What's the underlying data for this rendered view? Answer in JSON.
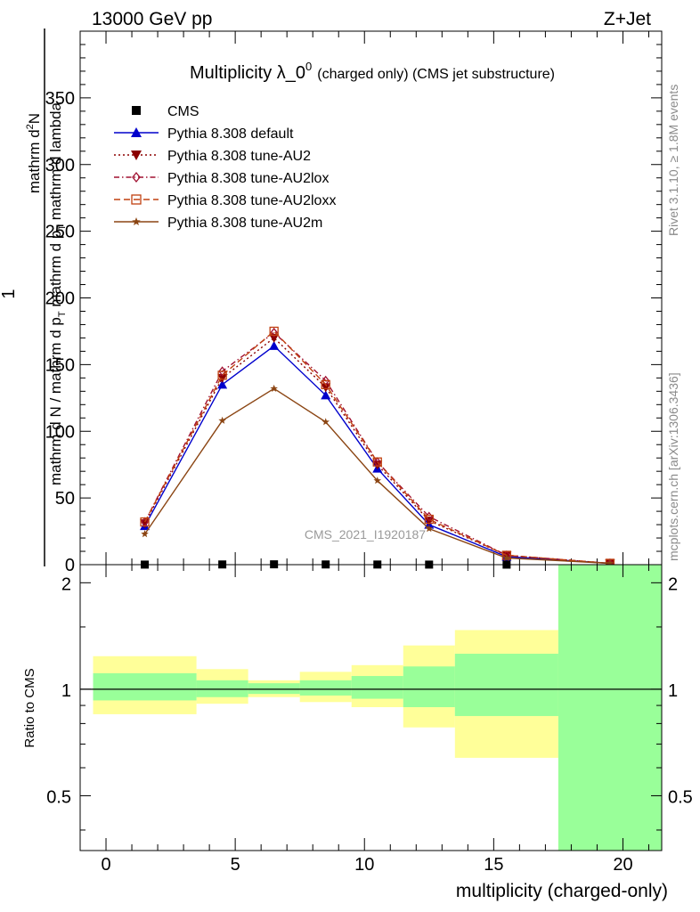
{
  "header": {
    "energy_label": "13000 GeV pp",
    "process_label": "Z+Jet"
  },
  "side_labels": {
    "rivet": "Rivet 3.1.10, ≥ 1.8M events",
    "mcplots": "mcplots.cern.ch [arXiv:1306.3436]"
  },
  "watermark": "CMS_2021_I1920187",
  "chart_data": [
    {
      "type": "line",
      "title_main": "Multiplicity λ_0",
      "title_sup": "0",
      "title_small": "(charged only) (CMS jet substructure)",
      "ylabel": {
        "one": "1",
        "numerator": "mathrm d",
        "numerator_sup": "2",
        "numerator_tail": "N",
        "den_a": "mathrm d N / mathrm d p",
        "den_sub": "T",
        "den_b": " mathrm d p",
        "den_c": " mathrm d lambda"
      },
      "xlim": [
        -1,
        21.5
      ],
      "ylim": [
        0,
        400
      ],
      "y_ticks": [
        0,
        50,
        100,
        150,
        200,
        250,
        300,
        350
      ],
      "x": [
        1.5,
        4.5,
        6.5,
        8.5,
        10.5,
        12.5,
        15.5,
        19.5
      ],
      "series": [
        {
          "name": "CMS",
          "color": "#000000",
          "marker": "square",
          "line": "none",
          "values": [
            0.05,
            0.15,
            0.25,
            0.15,
            0.1,
            0.05,
            0.02,
            0.01
          ]
        },
        {
          "name": "Pythia 8.308 default",
          "color": "#0000cc",
          "marker": "triangle-up",
          "line": "solid",
          "values": [
            29,
            135,
            164,
            127,
            72,
            30,
            6,
            1
          ]
        },
        {
          "name": "Pythia 8.308 tune-AU2",
          "color": "#8b0000",
          "marker": "triangle-down",
          "line": "dotted",
          "values": [
            31,
            140,
            170,
            133,
            75,
            33,
            7,
            1
          ]
        },
        {
          "name": "Pythia 8.308 tune-AU2lox",
          "color": "#a01030",
          "marker": "diamond-open",
          "line": "dashdot",
          "values": [
            32,
            145,
            174,
            138,
            77,
            36,
            7,
            1
          ]
        },
        {
          "name": "Pythia 8.308 tune-AU2loxx",
          "color": "#c04010",
          "marker": "square-open",
          "line": "dashed",
          "values": [
            32,
            142,
            175,
            135,
            77,
            34,
            7,
            1
          ]
        },
        {
          "name": "Pythia 8.308 tune-AU2m",
          "color": "#8b4513",
          "marker": "star",
          "line": "solid",
          "values": [
            23,
            108,
            132,
            107,
            63,
            27,
            5,
            1
          ]
        }
      ],
      "legend_position": "top-left"
    },
    {
      "type": "area",
      "ylabel": "Ratio to CMS",
      "xlabel": "multiplicity (charged-only)",
      "ylim": [
        0.35,
        2.25
      ],
      "y_ticks": [
        0.5,
        1,
        2
      ],
      "x_ticks": [
        0,
        5,
        10,
        15,
        20
      ],
      "reference_line": 1,
      "colors": {
        "stat": "#99ff99",
        "total": "#ffff99",
        "reference": "#000000"
      },
      "bins": [
        {
          "lo": -0.5,
          "hi": 3.5,
          "stat": [
            0.93,
            1.11
          ],
          "total": [
            0.85,
            1.24
          ]
        },
        {
          "lo": 3.5,
          "hi": 5.5,
          "stat": [
            0.95,
            1.06
          ],
          "total": [
            0.91,
            1.14
          ]
        },
        {
          "lo": 5.5,
          "hi": 7.5,
          "stat": [
            0.97,
            1.04
          ],
          "total": [
            0.95,
            1.06
          ]
        },
        {
          "lo": 7.5,
          "hi": 9.5,
          "stat": [
            0.96,
            1.06
          ],
          "total": [
            0.92,
            1.12
          ]
        },
        {
          "lo": 9.5,
          "hi": 11.5,
          "stat": [
            0.94,
            1.09
          ],
          "total": [
            0.89,
            1.17
          ]
        },
        {
          "lo": 11.5,
          "hi": 13.5,
          "stat": [
            0.89,
            1.16
          ],
          "total": [
            0.78,
            1.33
          ]
        },
        {
          "lo": 13.5,
          "hi": 17.5,
          "stat": [
            0.84,
            1.26
          ],
          "total": [
            0.64,
            1.47
          ]
        },
        {
          "lo": 17.5,
          "hi": 21.5,
          "stat": [
            0.35,
            2.25
          ],
          "total": [
            0.35,
            2.25
          ]
        }
      ]
    }
  ]
}
